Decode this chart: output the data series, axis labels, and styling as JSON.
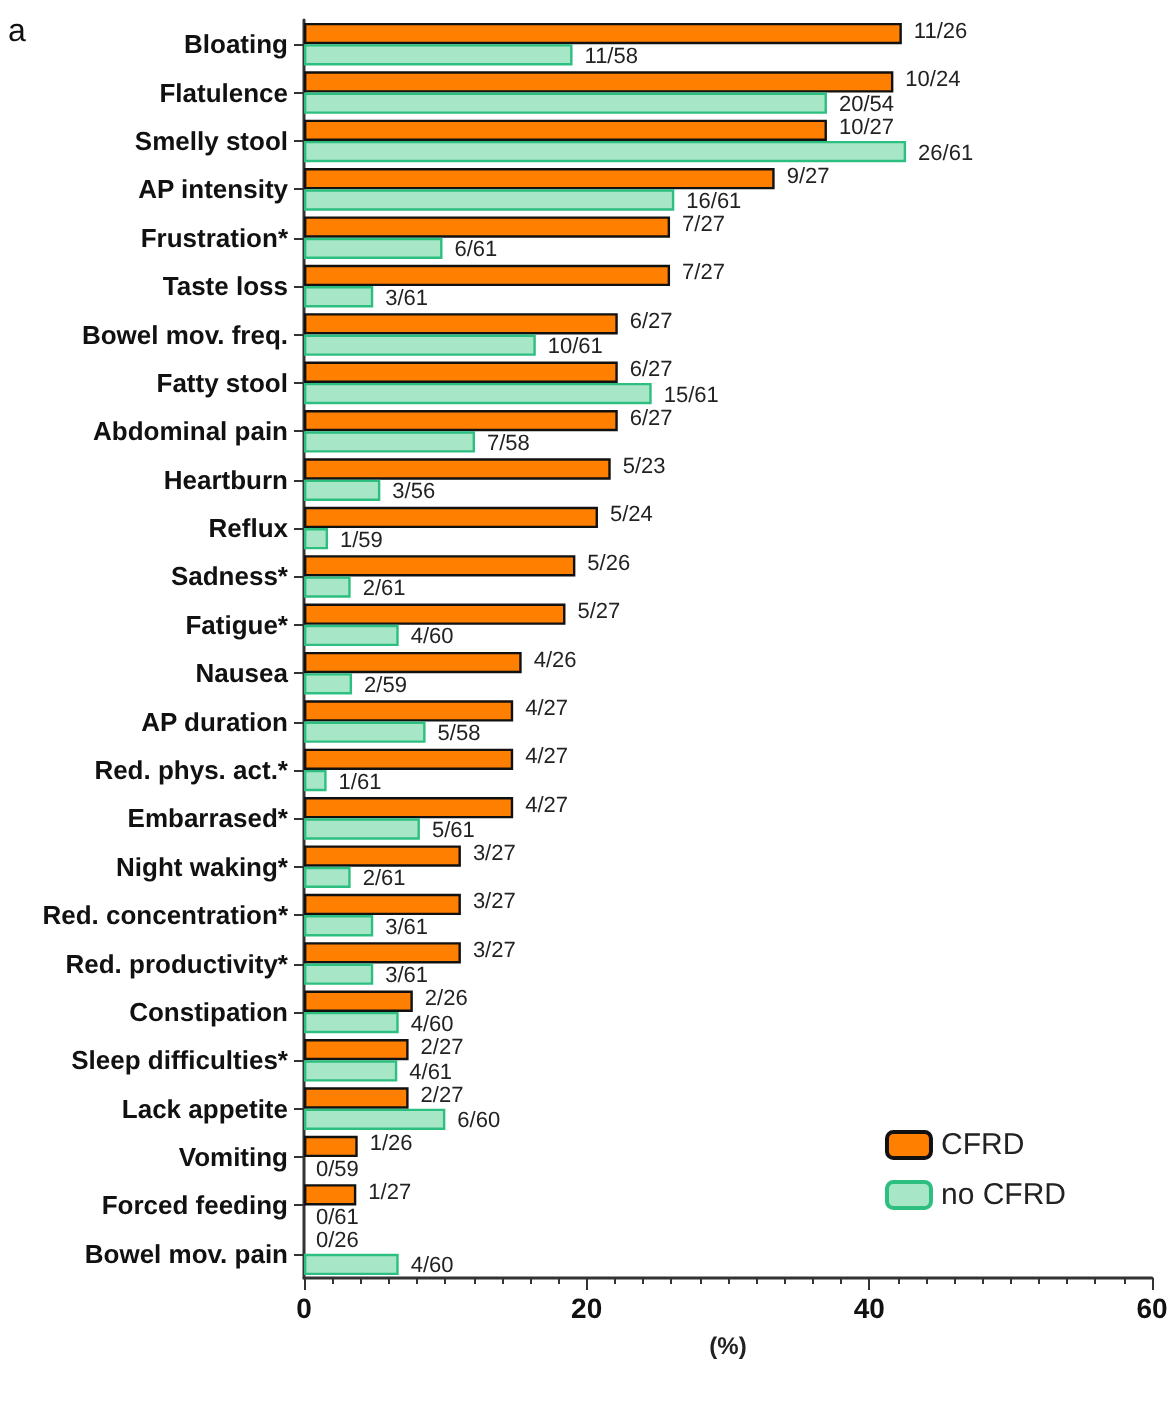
{
  "chart_data": {
    "type": "bar",
    "orientation": "horizontal",
    "xlabel": "(%)",
    "annotations": [
      "a"
    ],
    "categories": [
      "Bloating",
      "Flatulence",
      "Smelly stool",
      "AP intensity",
      "Frustration*",
      "Taste loss",
      "Bowel mov. freq.",
      "Fatty stool",
      "Abdominal pain",
      "Heartburn",
      "Reflux",
      "Sadness*",
      "Fatigue*",
      "Nausea",
      "AP duration",
      "Red. phys. act.*",
      "Embarrased*",
      "Night waking*",
      "Red. concentration*",
      "Red. productivity*",
      "Constipation",
      "Sleep difficulties*",
      "Lack appetite",
      "Vomiting",
      "Forced feeding",
      "Bowel mov. pain"
    ],
    "series": [
      {
        "name": "CFRD",
        "color": "#ff7f00",
        "values": [
          42.3,
          41.7,
          37.0,
          33.3,
          25.9,
          25.9,
          22.2,
          22.2,
          22.2,
          21.7,
          20.8,
          19.2,
          18.5,
          15.4,
          14.8,
          14.8,
          14.8,
          11.1,
          11.1,
          11.1,
          7.7,
          7.4,
          7.4,
          3.8,
          3.7,
          0
        ],
        "value_labels": [
          "11/26",
          "10/24",
          "10/27",
          "9/27",
          "7/27",
          "7/27",
          "6/27",
          "6/27",
          "6/27",
          "5/23",
          "5/24",
          "5/26",
          "5/27",
          "4/26",
          "4/27",
          "4/27",
          "4/27",
          "3/27",
          "3/27",
          "3/27",
          "2/26",
          "2/27",
          "2/27",
          "1/26",
          "1/27",
          "0/26"
        ]
      },
      {
        "name": "no CFRD",
        "color": "#a8e6c8",
        "values": [
          19.0,
          37.0,
          42.6,
          26.2,
          9.8,
          4.9,
          16.4,
          24.6,
          12.1,
          5.4,
          1.7,
          3.3,
          6.7,
          3.4,
          8.6,
          1.6,
          8.2,
          3.3,
          4.9,
          4.9,
          6.7,
          6.6,
          10.0,
          0,
          0,
          6.7
        ],
        "value_labels": [
          "11/58",
          "20/54",
          "26/61",
          "16/61",
          "6/61",
          "3/61",
          "10/61",
          "15/61",
          "7/58",
          "3/56",
          "1/59",
          "2/61",
          "4/60",
          "2/59",
          "5/58",
          "1/61",
          "5/61",
          "2/61",
          "3/61",
          "3/61",
          "4/60",
          "4/61",
          "6/60",
          "0/59",
          "0/61",
          "4/60"
        ]
      }
    ],
    "xlim": [
      0,
      60
    ],
    "xticks": [
      0,
      20,
      40,
      60
    ],
    "grid": false,
    "legend": "bottom right"
  }
}
